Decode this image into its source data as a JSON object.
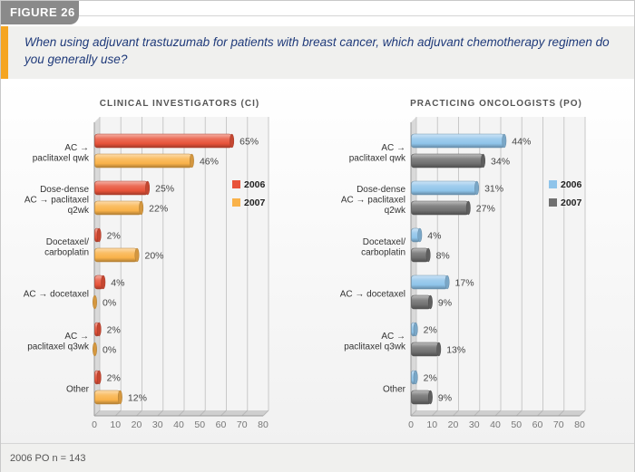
{
  "figure_label": "FIGURE 26",
  "question": "When using adjuvant trastuzumab for patients with breast cancer, which adjuvant chemotherapy regimen do you generally use?",
  "footnote": "2006 PO n = 143",
  "colors": {
    "ci_2006": "#e8533a",
    "ci_2007": "#f9b24a",
    "po_2006": "#8fc4ea",
    "po_2007": "#707070",
    "accent": "#f5a521",
    "question_text": "#1f3a7a"
  },
  "chart_data": [
    {
      "type": "bar",
      "orientation": "horizontal",
      "title": "CLINICAL INVESTIGATORS (CI)",
      "categories": [
        [
          "AC →",
          "paclitaxel qwk"
        ],
        [
          "Dose-dense",
          "AC → paclitaxel",
          "q2wk"
        ],
        [
          "Docetaxel/",
          "carboplatin"
        ],
        [
          "AC → docetaxel"
        ],
        [
          "AC →",
          "paclitaxel q3wk"
        ],
        [
          "Other"
        ]
      ],
      "series": [
        {
          "name": "2006",
          "values": [
            65,
            25,
            2,
            4,
            2,
            2
          ],
          "labels": [
            "65%",
            "25%",
            "2%",
            "4%",
            "2%",
            "2%"
          ]
        },
        {
          "name": "2007",
          "values": [
            46,
            22,
            20,
            0,
            0,
            12
          ],
          "labels": [
            "46%",
            "22%",
            "20%",
            "0%",
            "0%",
            "12%"
          ]
        }
      ],
      "xlim": [
        0,
        80
      ],
      "xticks": [
        "0",
        "10",
        "20",
        "30",
        "40",
        "50",
        "60",
        "70",
        "80"
      ],
      "legend": [
        "2006",
        "2007"
      ],
      "legend_position": "right"
    },
    {
      "type": "bar",
      "orientation": "horizontal",
      "title": "PRACTICING ONCOLOGISTS (PO)",
      "categories": [
        [
          "AC →",
          "paclitaxel qwk"
        ],
        [
          "Dose-dense",
          "AC → paclitaxel",
          "q2wk"
        ],
        [
          "Docetaxel/",
          "carboplatin"
        ],
        [
          "AC → docetaxel"
        ],
        [
          "AC →",
          "paclitaxel q3wk"
        ],
        [
          "Other"
        ]
      ],
      "series": [
        {
          "name": "2006",
          "values": [
            44,
            31,
            4,
            17,
            2,
            2
          ],
          "labels": [
            "44%",
            "31%",
            "4%",
            "17%",
            "2%",
            "2%"
          ]
        },
        {
          "name": "2007",
          "values": [
            34,
            27,
            8,
            9,
            13,
            9
          ],
          "labels": [
            "34%",
            "27%",
            "8%",
            "9%",
            "13%",
            "9%"
          ]
        }
      ],
      "xlim": [
        0,
        80
      ],
      "xticks": [
        "0",
        "10",
        "20",
        "30",
        "40",
        "50",
        "60",
        "70",
        "80"
      ],
      "legend": [
        "2006",
        "2007"
      ],
      "legend_position": "right"
    }
  ]
}
